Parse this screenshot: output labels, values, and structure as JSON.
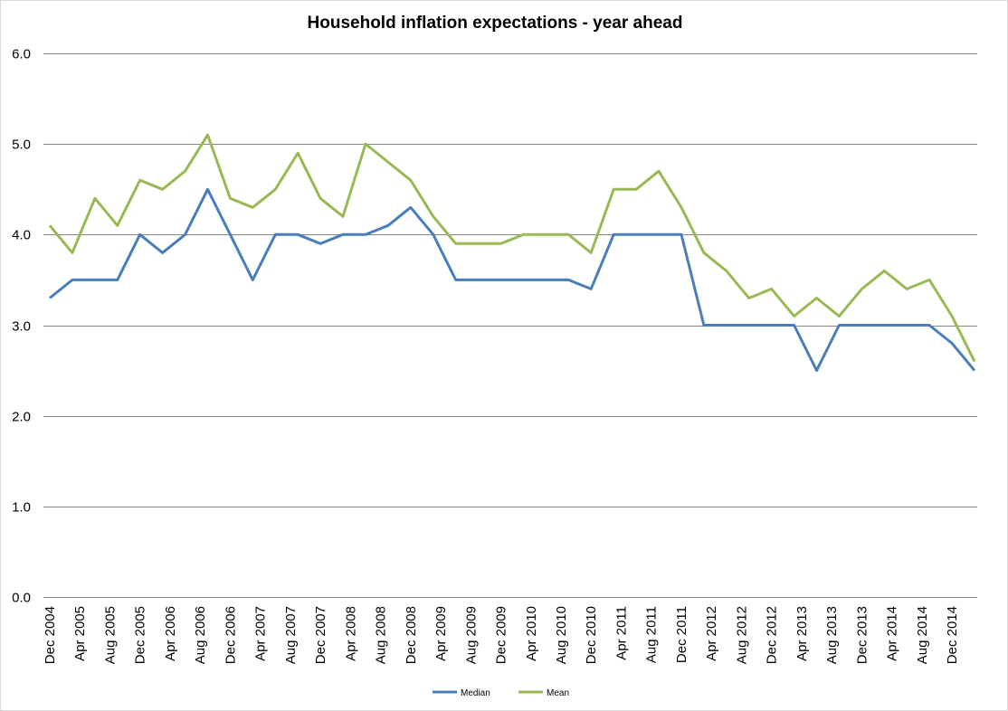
{
  "chart_data": {
    "type": "line",
    "title": "Household inflation expectations -  year ahead",
    "xlabel": "",
    "ylabel": "",
    "ylim": [
      0,
      6
    ],
    "yticks": [
      "0.0",
      "1.0",
      "2.0",
      "3.0",
      "4.0",
      "5.0",
      "6.0"
    ],
    "grid": true,
    "legend_position": "bottom",
    "x_start": "Dec 2004",
    "x_frequency": "quarterly",
    "x_tick_labels": [
      "Dec 2004",
      "Apr 2005",
      "Aug 2005",
      "Dec 2005",
      "Apr 2006",
      "Aug 2006",
      "Dec 2006",
      "Apr 2007",
      "Aug 2007",
      "Dec 2007",
      "Apr 2008",
      "Aug 2008",
      "Dec 2008",
      "Apr 2009",
      "Aug 2009",
      "Dec 2009",
      "Apr 2010",
      "Aug 2010",
      "Dec 2010",
      "Apr 2011",
      "Aug 2011",
      "Dec 2011",
      "Apr 2012",
      "Aug 2012",
      "Dec 2012",
      "Apr 2013",
      "Aug 2013",
      "Dec 2013",
      "Apr 2014",
      "Aug 2014",
      "Dec 2014"
    ],
    "series": [
      {
        "name": "Median",
        "color": "#4a7ebb",
        "values": [
          3.3,
          3.5,
          3.5,
          3.5,
          4.0,
          3.8,
          4.0,
          4.5,
          4.0,
          3.5,
          4.0,
          4.0,
          3.9,
          4.0,
          4.0,
          4.1,
          4.3,
          4.0,
          3.5,
          3.5,
          3.5,
          3.5,
          3.5,
          3.5,
          3.4,
          4.0,
          4.0,
          4.0,
          4.0,
          3.0,
          3.0,
          3.0,
          3.0,
          3.0,
          2.5,
          3.0,
          3.0,
          3.0,
          3.0,
          3.0,
          2.8,
          2.5
        ]
      },
      {
        "name": "Mean",
        "color": "#98b954",
        "values": [
          4.1,
          3.8,
          4.4,
          4.1,
          4.6,
          4.5,
          4.7,
          5.1,
          4.4,
          4.3,
          4.5,
          4.9,
          4.4,
          4.2,
          5.0,
          4.8,
          4.6,
          4.2,
          3.9,
          3.9,
          3.9,
          4.0,
          4.0,
          4.0,
          3.8,
          4.5,
          4.5,
          4.7,
          4.3,
          3.8,
          3.6,
          3.3,
          3.4,
          3.1,
          3.3,
          3.1,
          3.4,
          3.6,
          3.4,
          3.5,
          3.1,
          2.6
        ]
      }
    ]
  }
}
